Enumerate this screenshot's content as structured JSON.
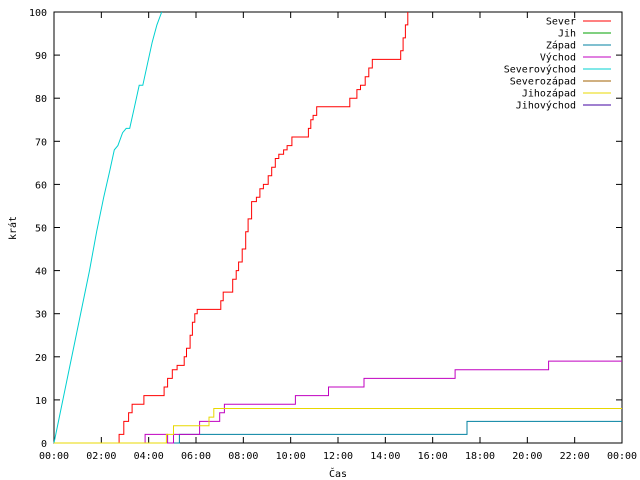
{
  "chart_data": {
    "type": "line",
    "title": "",
    "xlabel": "Čas",
    "ylabel": "krát",
    "xlim": [
      0,
      24
    ],
    "ylim": [
      0,
      100
    ],
    "x_ticks": [
      {
        "v": 0,
        "label": "00:00"
      },
      {
        "v": 2,
        "label": "02:00"
      },
      {
        "v": 4,
        "label": "04:00"
      },
      {
        "v": 6,
        "label": "06:00"
      },
      {
        "v": 8,
        "label": "08:00"
      },
      {
        "v": 10,
        "label": "10:00"
      },
      {
        "v": 12,
        "label": "12:00"
      },
      {
        "v": 14,
        "label": "14:00"
      },
      {
        "v": 16,
        "label": "16:00"
      },
      {
        "v": 18,
        "label": "18:00"
      },
      {
        "v": 20,
        "label": "20:00"
      },
      {
        "v": 22,
        "label": "22:00"
      },
      {
        "v": 24,
        "label": "00:00"
      }
    ],
    "y_ticks": [
      0,
      10,
      20,
      30,
      40,
      50,
      60,
      70,
      80,
      90,
      100
    ],
    "grid": false,
    "legend_position": "top-right",
    "series": [
      {
        "name": "Sever",
        "color": "#ff0000",
        "step": true,
        "points": [
          [
            0,
            0
          ],
          [
            2.75,
            0
          ],
          [
            2.75,
            2
          ],
          [
            2.9,
            2
          ],
          [
            2.95,
            5
          ],
          [
            3.1,
            5
          ],
          [
            3.15,
            7
          ],
          [
            3.25,
            7
          ],
          [
            3.3,
            9
          ],
          [
            3.75,
            9
          ],
          [
            3.8,
            11
          ],
          [
            4.6,
            11
          ],
          [
            4.65,
            13
          ],
          [
            4.75,
            13
          ],
          [
            4.8,
            15
          ],
          [
            4.95,
            15
          ],
          [
            5.0,
            17
          ],
          [
            5.15,
            17
          ],
          [
            5.2,
            18
          ],
          [
            5.4,
            18
          ],
          [
            5.5,
            20
          ],
          [
            5.6,
            22
          ],
          [
            5.75,
            25
          ],
          [
            5.85,
            28
          ],
          [
            5.95,
            30
          ],
          [
            6.05,
            31
          ],
          [
            6.95,
            31
          ],
          [
            7.05,
            33
          ],
          [
            7.15,
            35
          ],
          [
            7.45,
            35
          ],
          [
            7.55,
            38
          ],
          [
            7.7,
            40
          ],
          [
            7.8,
            42
          ],
          [
            7.95,
            45
          ],
          [
            8.1,
            49
          ],
          [
            8.2,
            52
          ],
          [
            8.35,
            56
          ],
          [
            8.55,
            57
          ],
          [
            8.7,
            59
          ],
          [
            8.85,
            60
          ],
          [
            9.05,
            62
          ],
          [
            9.2,
            64
          ],
          [
            9.35,
            66
          ],
          [
            9.5,
            67
          ],
          [
            9.7,
            68
          ],
          [
            9.85,
            69
          ],
          [
            10.05,
            71
          ],
          [
            10.6,
            71
          ],
          [
            10.75,
            73
          ],
          [
            10.85,
            75
          ],
          [
            10.95,
            76
          ],
          [
            11.1,
            78
          ],
          [
            12.35,
            78
          ],
          [
            12.5,
            80
          ],
          [
            12.7,
            80
          ],
          [
            12.8,
            82
          ],
          [
            12.95,
            83
          ],
          [
            13.15,
            85
          ],
          [
            13.3,
            87
          ],
          [
            13.45,
            89
          ],
          [
            14.55,
            89
          ],
          [
            14.65,
            91
          ],
          [
            14.75,
            94
          ],
          [
            14.85,
            97
          ],
          [
            14.95,
            100
          ]
        ]
      },
      {
        "name": "Jih",
        "color": "#00a000",
        "step": true,
        "points": []
      },
      {
        "name": "Západ",
        "color": "#0080a0",
        "step": true,
        "points": [
          [
            0,
            0
          ],
          [
            5.3,
            0
          ],
          [
            5.3,
            2
          ],
          [
            17.45,
            2
          ],
          [
            17.45,
            5
          ],
          [
            24,
            5
          ]
        ]
      },
      {
        "name": "Východ",
        "color": "#c000c0",
        "step": true,
        "points": [
          [
            0,
            0
          ],
          [
            3.85,
            0
          ],
          [
            3.85,
            2
          ],
          [
            4.8,
            2
          ],
          [
            4.8,
            0
          ],
          [
            5.05,
            0
          ],
          [
            5.05,
            2
          ],
          [
            6.1,
            2
          ],
          [
            6.15,
            5
          ],
          [
            6.95,
            5
          ],
          [
            7.0,
            7
          ],
          [
            7.15,
            7
          ],
          [
            7.2,
            9
          ],
          [
            10.15,
            9
          ],
          [
            10.2,
            11
          ],
          [
            11.55,
            11
          ],
          [
            11.6,
            13
          ],
          [
            13.05,
            13
          ],
          [
            13.1,
            15
          ],
          [
            16.9,
            15
          ],
          [
            16.95,
            17
          ],
          [
            20.85,
            17
          ],
          [
            20.9,
            19
          ],
          [
            24,
            19
          ]
        ]
      },
      {
        "name": "Severovýchod",
        "color": "#00d0d0",
        "step": false,
        "points": [
          [
            0,
            0
          ],
          [
            0.3,
            8
          ],
          [
            0.6,
            16
          ],
          [
            0.9,
            24
          ],
          [
            1.2,
            32
          ],
          [
            1.5,
            40
          ],
          [
            1.8,
            49
          ],
          [
            2.1,
            57
          ],
          [
            2.35,
            63
          ],
          [
            2.55,
            68
          ],
          [
            2.7,
            69
          ],
          [
            2.9,
            72
          ],
          [
            3.05,
            73
          ],
          [
            3.2,
            73
          ],
          [
            3.4,
            78
          ],
          [
            3.6,
            83
          ],
          [
            3.75,
            83
          ],
          [
            3.95,
            88
          ],
          [
            4.15,
            93
          ],
          [
            4.35,
            97
          ],
          [
            4.55,
            100
          ]
        ]
      },
      {
        "name": "Severozápad",
        "color": "#a06000",
        "step": true,
        "points": []
      },
      {
        "name": "Jihozápad",
        "color": "#e8d800",
        "step": true,
        "points": [
          [
            0,
            0
          ],
          [
            4.75,
            0
          ],
          [
            4.75,
            2
          ],
          [
            5.0,
            2
          ],
          [
            5.05,
            4
          ],
          [
            6.5,
            4
          ],
          [
            6.55,
            6
          ],
          [
            6.7,
            6
          ],
          [
            6.75,
            8
          ],
          [
            24,
            8
          ]
        ]
      },
      {
        "name": "Jihovýchod",
        "color": "#4000a0",
        "step": true,
        "points": []
      }
    ]
  }
}
